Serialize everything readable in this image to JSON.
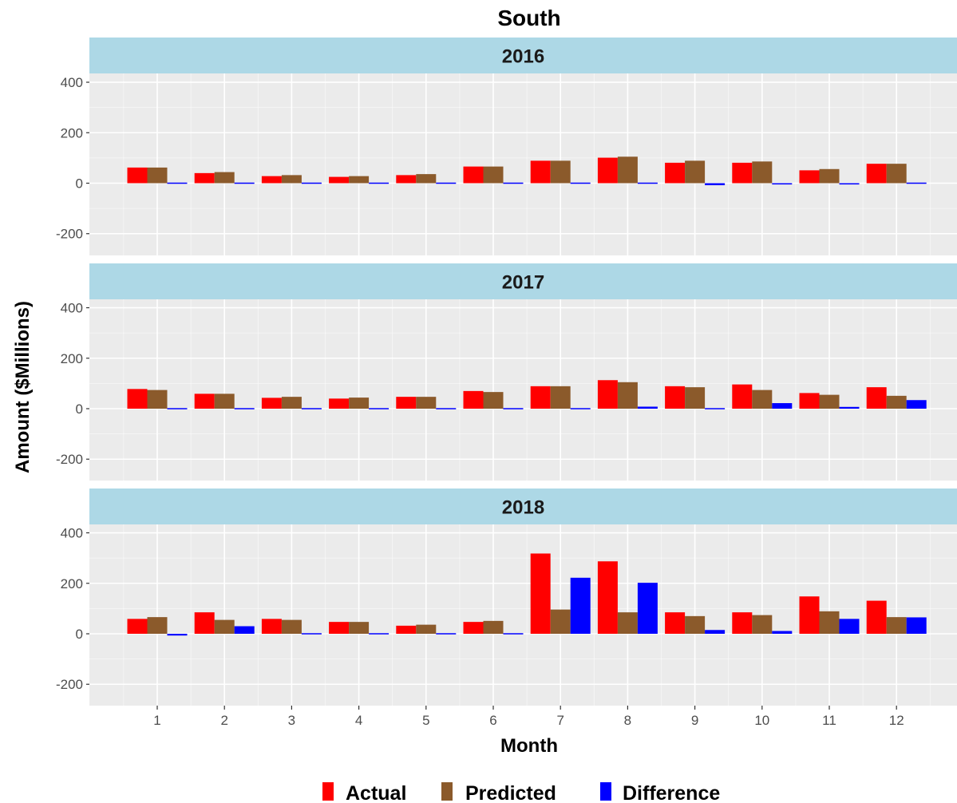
{
  "chart_data": {
    "type": "bar",
    "title": "South",
    "xlabel": "Month",
    "ylabel": "Amount ($Millions)",
    "ylim": [
      -270,
      430
    ],
    "yticks": [
      -200,
      0,
      200,
      400
    ],
    "categories": [
      "1",
      "2",
      "3",
      "4",
      "5",
      "6",
      "7",
      "8",
      "9",
      "10",
      "11",
      "12"
    ],
    "legend_position": "bottom",
    "series_colors": {
      "Actual": "#ff0000",
      "Predicted": "#8b5a2b",
      "Difference": "#0000ff"
    },
    "strip_color": "#add8e6",
    "panel_background": "#ebebeb",
    "legend": [
      "Actual",
      "Predicted",
      "Difference"
    ],
    "panels": [
      {
        "label": "2016",
        "series": [
          {
            "name": "Actual",
            "values": [
              62,
              40,
              28,
              25,
              32,
              66,
              89,
              101,
              81,
              81,
              51,
              77
            ]
          },
          {
            "name": "Predicted",
            "values": [
              62,
              44,
              32,
              28,
              36,
              66,
              89,
              105,
              89,
              86,
              56,
              77
            ]
          },
          {
            "name": "Difference",
            "values": [
              0,
              -4,
              -4,
              -3,
              -4,
              0,
              0,
              -4,
              -8,
              -5,
              -5,
              0
            ]
          }
        ]
      },
      {
        "label": "2017",
        "series": [
          {
            "name": "Actual",
            "values": [
              78,
              59,
              43,
              40,
              47,
              70,
              89,
              113,
              89,
              96,
              62,
              85
            ]
          },
          {
            "name": "Predicted",
            "values": [
              74,
              59,
              47,
              44,
              47,
              66,
              89,
              105,
              85,
              74,
              55,
              51
            ]
          },
          {
            "name": "Difference",
            "values": [
              4,
              0,
              -4,
              -4,
              0,
              4,
              0,
              8,
              4,
              22,
              7,
              34
            ]
          }
        ]
      },
      {
        "label": "2018",
        "series": [
          {
            "name": "Actual",
            "values": [
              59,
              85,
              59,
              47,
              32,
              47,
              318,
              287,
              85,
              85,
              148,
              131
            ]
          },
          {
            "name": "Predicted",
            "values": [
              66,
              55,
              55,
              47,
              36,
              51,
              96,
              85,
              70,
              74,
              89,
              66
            ]
          },
          {
            "name": "Difference",
            "values": [
              -7,
              30,
              4,
              0,
              -4,
              -4,
              222,
              202,
              15,
              11,
              59,
              65
            ]
          }
        ]
      }
    ]
  }
}
